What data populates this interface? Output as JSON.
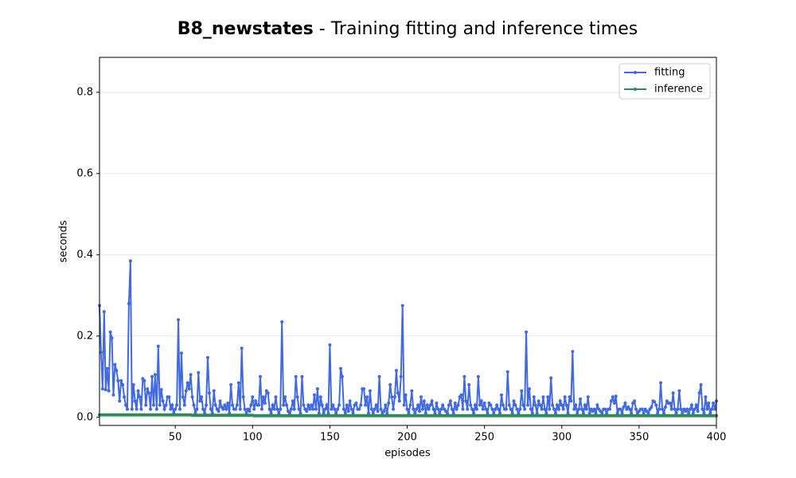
{
  "chart_data": {
    "type": "line",
    "title": {
      "name": "B8_newstates",
      "text": "- Training fitting and inference times"
    },
    "x_label": "episodes",
    "y_label": "seconds",
    "x": [
      1,
      2,
      3,
      4,
      5,
      6,
      7,
      8,
      9,
      10,
      11,
      12,
      13,
      14,
      15,
      16,
      17,
      18,
      19,
      20,
      21,
      22,
      23,
      24,
      25,
      26,
      27,
      28,
      29,
      30,
      31,
      32,
      33,
      34,
      35,
      36,
      37,
      38,
      39,
      40,
      41,
      42,
      43,
      44,
      45,
      46,
      47,
      48,
      49,
      50,
      51,
      52,
      53,
      54,
      55,
      56,
      57,
      58,
      59,
      60,
      61,
      62,
      63,
      64,
      65,
      66,
      67,
      68,
      69,
      70,
      71,
      72,
      73,
      74,
      75,
      76,
      77,
      78,
      79,
      80,
      81,
      82,
      83,
      84,
      85,
      86,
      87,
      88,
      89,
      90,
      91,
      92,
      93,
      94,
      95,
      96,
      97,
      98,
      99,
      100,
      101,
      102,
      103,
      104,
      105,
      106,
      107,
      108,
      109,
      110,
      111,
      112,
      113,
      114,
      115,
      116,
      117,
      118,
      119,
      120,
      121,
      122,
      123,
      124,
      125,
      126,
      127,
      128,
      129,
      130,
      131,
      132,
      133,
      134,
      135,
      136,
      137,
      138,
      139,
      140,
      141,
      142,
      143,
      144,
      145,
      146,
      147,
      148,
      149,
      150,
      151,
      152,
      153,
      154,
      155,
      156,
      157,
      158,
      159,
      160,
      161,
      162,
      163,
      164,
      165,
      166,
      167,
      168,
      169,
      170,
      171,
      172,
      173,
      174,
      175,
      176,
      177,
      178,
      179,
      180,
      181,
      182,
      183,
      184,
      185,
      186,
      187,
      188,
      189,
      190,
      191,
      192,
      193,
      194,
      195,
      196,
      197,
      198,
      199,
      200,
      201,
      202,
      203,
      204,
      205,
      206,
      207,
      208,
      209,
      210,
      211,
      212,
      213,
      214,
      215,
      216,
      217,
      218,
      219,
      220,
      221,
      222,
      223,
      224,
      225,
      226,
      227,
      228,
      229,
      230,
      231,
      232,
      233,
      234,
      235,
      236,
      237,
      238,
      239,
      240,
      241,
      242,
      243,
      244,
      245,
      246,
      247,
      248,
      249,
      250,
      251,
      252,
      253,
      254,
      255,
      256,
      257,
      258,
      259,
      260,
      261,
      262,
      263,
      264,
      265,
      266,
      267,
      268,
      269,
      270,
      271,
      272,
      273,
      274,
      275,
      276,
      277,
      278,
      279,
      280,
      281,
      282,
      283,
      284,
      285,
      286,
      287,
      288,
      289,
      290,
      291,
      292,
      293,
      294,
      295,
      296,
      297,
      298,
      299,
      300,
      301,
      302,
      303,
      304,
      305,
      306,
      307,
      308,
      309,
      310,
      311,
      312,
      313,
      314,
      315,
      316,
      317,
      318,
      319,
      320,
      321,
      322,
      323,
      324,
      325,
      326,
      327,
      328,
      329,
      330,
      331,
      332,
      333,
      334,
      335,
      336,
      337,
      338,
      339,
      340,
      341,
      342,
      343,
      344,
      345,
      346,
      347,
      348,
      349,
      350,
      351,
      352,
      353,
      354,
      355,
      356,
      357,
      358,
      359,
      360,
      361,
      362,
      363,
      364,
      365,
      366,
      367,
      368,
      369,
      370,
      371,
      372,
      373,
      374,
      375,
      376,
      377,
      378,
      379,
      380,
      381,
      382,
      383,
      384,
      385,
      386,
      387,
      388,
      389,
      390,
      391,
      392,
      393,
      394,
      395,
      396,
      397,
      398,
      399,
      400
    ],
    "series": [
      {
        "name": "fitting",
        "color": "#4169e1",
        "values": [
          0.275,
          0.16,
          0.07,
          0.26,
          0.068,
          0.12,
          0.065,
          0.21,
          0.195,
          0.055,
          0.13,
          0.115,
          0.09,
          0.04,
          0.09,
          0.08,
          0.05,
          0.03,
          0.02,
          0.28,
          0.385,
          0.02,
          0.08,
          0.04,
          0.02,
          0.065,
          0.05,
          0.02,
          0.095,
          0.09,
          0.03,
          0.07,
          0.06,
          0.02,
          0.1,
          0.03,
          0.105,
          0.02,
          0.175,
          0.03,
          0.068,
          0.04,
          0.02,
          0.03,
          0.05,
          0.05,
          0.02,
          0.03,
          0.01,
          0.02,
          0.03,
          0.24,
          0.02,
          0.158,
          0.05,
          0.03,
          0.065,
          0.085,
          0.07,
          0.105,
          0.05,
          0.03,
          0.01,
          0.02,
          0.11,
          0.04,
          0.05,
          0.02,
          0.01,
          0.03,
          0.147,
          0.06,
          0.02,
          0.01,
          0.065,
          0.03,
          0.02,
          0.015,
          0.04,
          0.025,
          0.02,
          0.03,
          0.02,
          0.035,
          0.01,
          0.08,
          0.03,
          0.02,
          0.02,
          0.03,
          0.085,
          0.02,
          0.17,
          0.05,
          0.02,
          0.01,
          0.02,
          0.015,
          0.03,
          0.05,
          0.02,
          0.04,
          0.03,
          0.03,
          0.1,
          0.02,
          0.05,
          0.035,
          0.065,
          0.06,
          0.02,
          0.01,
          0.03,
          0.02,
          0.05,
          0.02,
          0.01,
          0.02,
          0.235,
          0.03,
          0.05,
          0.03,
          0.015,
          0.01,
          0.02,
          0.04,
          0.02,
          0.1,
          0.05,
          0.02,
          0.01,
          0.1,
          0.03,
          0.02,
          0.015,
          0.03,
          0.02,
          0.03,
          0.02,
          0.055,
          0.02,
          0.07,
          0.01,
          0.05,
          0.03,
          0.01,
          0.02,
          0.03,
          0.01,
          0.178,
          0.02,
          0.03,
          0.02,
          0.01,
          0.02,
          0.03,
          0.12,
          0.1,
          0.02,
          0.01,
          0.03,
          0.015,
          0.04,
          0.02,
          0.01,
          0.03,
          0.035,
          0.02,
          0.02,
          0.03,
          0.07,
          0.07,
          0.03,
          0.05,
          0.01,
          0.065,
          0.02,
          0.01,
          0.02,
          0.03,
          0.015,
          0.1,
          0.02,
          0.01,
          0.015,
          0.03,
          0.01,
          0.035,
          0.08,
          0.05,
          0.02,
          0.05,
          0.115,
          0.06,
          0.04,
          0.1,
          0.275,
          0.03,
          0.055,
          0.02,
          0.01,
          0.03,
          0.065,
          0.02,
          0.01,
          0.02,
          0.03,
          0.015,
          0.05,
          0.02,
          0.04,
          0.01,
          0.03,
          0.02,
          0.03,
          0.04,
          0.02,
          0.01,
          0.035,
          0.02,
          0.01,
          0.02,
          0.03,
          0.02,
          0.015,
          0.01,
          0.03,
          0.04,
          0.02,
          0.01,
          0.035,
          0.02,
          0.03,
          0.05,
          0.055,
          0.02,
          0.1,
          0.04,
          0.02,
          0.08,
          0.03,
          0.02,
          0.01,
          0.03,
          0.02,
          0.1,
          0.03,
          0.04,
          0.02,
          0.035,
          0.02,
          0.01,
          0.035,
          0.03,
          0.02,
          0.01,
          0.02,
          0.03,
          0.02,
          0.01,
          0.055,
          0.03,
          0.02,
          0.02,
          0.112,
          0.03,
          0.02,
          0.01,
          0.04,
          0.03,
          0.02,
          0.01,
          0.02,
          0.065,
          0.03,
          0.02,
          0.21,
          0.03,
          0.07,
          0.02,
          0.01,
          0.05,
          0.03,
          0.01,
          0.04,
          0.03,
          0.02,
          0.05,
          0.02,
          0.01,
          0.05,
          0.02,
          0.097,
          0.03,
          0.02,
          0.01,
          0.03,
          0.02,
          0.04,
          0.03,
          0.02,
          0.05,
          0.03,
          0.01,
          0.05,
          0.04,
          0.162,
          0.02,
          0.03,
          0.01,
          0.02,
          0.045,
          0.02,
          0.01,
          0.03,
          0.02,
          0.05,
          0.01,
          0.02,
          0.015,
          0.02,
          0.01,
          0.03,
          0.02,
          0.015,
          0.01,
          0.02,
          0.02,
          0.01,
          0.02,
          0.02,
          0.04,
          0.05,
          0.035,
          0.052,
          0.01,
          0.02,
          0.02,
          0.01,
          0.025,
          0.035,
          0.02,
          0.025,
          0.02,
          0.01,
          0.035,
          0.04,
          0.02,
          0.01,
          0.015,
          0.02,
          0.02,
          0.01,
          0.02,
          0.015,
          0.01,
          0.02,
          0.025,
          0.04,
          0.038,
          0.03,
          0.01,
          0.02,
          0.085,
          0.02,
          0.01,
          0.025,
          0.04,
          0.035,
          0.035,
          0.02,
          0.06,
          0.02,
          0.01,
          0.02,
          0.065,
          0.02,
          0.01,
          0.02,
          0.015,
          0.02,
          0.01,
          0.02,
          0.03,
          0.01,
          0.02,
          0.03,
          0.015,
          0.06,
          0.08,
          0.02,
          0.01,
          0.05,
          0.02,
          0.035,
          0.01,
          0.02,
          0.035,
          0.02,
          0.04
        ]
      },
      {
        "name": "inference",
        "color": "#2e8b57",
        "values": [
          0.006,
          0.006,
          0.006,
          0.006,
          0.006,
          0.006,
          0.006,
          0.006,
          0.006,
          0.006,
          0.006,
          0.006,
          0.006,
          0.006,
          0.006,
          0.006,
          0.006,
          0.006,
          0.006,
          0.006,
          0.006,
          0.006,
          0.006,
          0.006,
          0.006,
          0.006,
          0.006,
          0.006,
          0.006,
          0.006,
          0.006,
          0.006,
          0.006,
          0.006,
          0.006,
          0.006,
          0.006,
          0.006,
          0.006,
          0.006,
          0.006,
          0.006,
          0.006,
          0.006,
          0.006,
          0.006,
          0.006,
          0.006,
          0.006,
          0.006,
          0.006,
          0.006,
          0.006,
          0.006,
          0.006,
          0.006,
          0.006,
          0.006,
          0.006,
          0.006,
          0.005,
          0.005,
          0.005,
          0.005,
          0.005,
          0.005,
          0.005,
          0.005,
          0.005,
          0.005,
          0.005,
          0.005,
          0.005,
          0.005,
          0.005,
          0.005,
          0.005,
          0.005,
          0.005,
          0.005,
          0.005,
          0.005,
          0.005,
          0.005,
          0.005,
          0.005,
          0.005,
          0.005,
          0.005,
          0.005,
          0.005,
          0.005,
          0.005,
          0.005,
          0.005,
          0.005,
          0.005,
          0.005,
          0.005,
          0.005,
          0.004,
          0.004,
          0.004,
          0.004,
          0.004,
          0.004,
          0.004,
          0.004,
          0.004,
          0.004,
          0.004,
          0.004,
          0.004,
          0.004,
          0.004,
          0.004,
          0.004,
          0.004,
          0.004,
          0.004,
          0.004,
          0.004,
          0.004,
          0.004,
          0.004,
          0.004,
          0.004,
          0.004,
          0.004,
          0.004,
          0.004,
          0.004,
          0.004,
          0.004,
          0.004,
          0.004,
          0.004,
          0.004,
          0.004,
          0.004,
          0.004,
          0.004,
          0.004,
          0.004,
          0.004,
          0.004,
          0.004,
          0.004,
          0.004,
          0.004,
          0.004,
          0.004,
          0.004,
          0.004,
          0.004,
          0.004,
          0.004,
          0.004,
          0.004,
          0.004,
          0.004,
          0.004,
          0.004,
          0.004,
          0.004,
          0.004,
          0.004,
          0.004,
          0.004,
          0.004,
          0.004,
          0.004,
          0.004,
          0.004,
          0.004,
          0.004,
          0.004,
          0.004,
          0.004,
          0.004,
          0.004,
          0.004,
          0.004,
          0.004,
          0.004,
          0.004,
          0.004,
          0.004,
          0.004,
          0.004,
          0.004,
          0.004,
          0.004,
          0.004,
          0.004,
          0.004,
          0.004,
          0.004,
          0.004,
          0.004,
          0.004,
          0.004,
          0.004,
          0.004,
          0.004,
          0.004,
          0.004,
          0.004,
          0.004,
          0.004,
          0.004,
          0.004,
          0.004,
          0.004,
          0.004,
          0.004,
          0.004,
          0.004,
          0.004,
          0.004,
          0.004,
          0.004,
          0.004,
          0.004,
          0.004,
          0.004,
          0.004,
          0.004,
          0.004,
          0.004,
          0.004,
          0.004,
          0.004,
          0.004,
          0.004,
          0.004,
          0.004,
          0.004,
          0.004,
          0.004,
          0.004,
          0.004,
          0.004,
          0.004,
          0.004,
          0.004,
          0.004,
          0.004,
          0.004,
          0.004,
          0.004,
          0.004,
          0.004,
          0.004,
          0.004,
          0.004,
          0.004,
          0.004,
          0.004,
          0.004,
          0.004,
          0.004,
          0.004,
          0.004,
          0.004,
          0.004,
          0.004,
          0.004,
          0.004,
          0.004,
          0.004,
          0.004,
          0.004,
          0.004,
          0.004,
          0.004,
          0.004,
          0.004,
          0.004,
          0.004,
          0.004,
          0.004,
          0.004,
          0.004,
          0.004,
          0.004,
          0.004,
          0.004,
          0.004,
          0.004,
          0.004,
          0.004,
          0.004,
          0.004,
          0.004,
          0.004,
          0.004,
          0.004,
          0.004,
          0.004,
          0.004,
          0.004,
          0.004,
          0.004,
          0.004,
          0.004,
          0.004,
          0.004,
          0.004,
          0.004,
          0.004,
          0.004,
          0.004,
          0.004,
          0.004,
          0.004,
          0.004,
          0.004,
          0.004,
          0.004,
          0.004,
          0.004,
          0.004,
          0.004,
          0.004,
          0.004,
          0.004,
          0.004,
          0.004,
          0.004,
          0.004,
          0.004,
          0.004,
          0.004,
          0.004,
          0.004,
          0.004,
          0.004,
          0.004,
          0.004,
          0.004,
          0.004,
          0.004,
          0.004,
          0.004,
          0.004,
          0.004,
          0.004,
          0.004,
          0.004,
          0.004,
          0.004,
          0.004,
          0.004,
          0.004,
          0.004,
          0.004,
          0.004,
          0.004,
          0.004,
          0.004,
          0.004,
          0.004,
          0.004,
          0.004,
          0.004,
          0.004,
          0.004,
          0.004,
          0.004,
          0.004,
          0.004,
          0.004,
          0.004,
          0.004,
          0.004,
          0.004,
          0.004,
          0.004,
          0.004,
          0.004,
          0.004,
          0.004,
          0.004,
          0.004,
          0.004,
          0.004,
          0.004,
          0.004,
          0.004,
          0.004,
          0.004,
          0.004,
          0.004,
          0.004,
          0.004,
          0.004,
          0.004,
          0.004,
          0.004
        ]
      }
    ],
    "xlim": [
      1,
      400
    ],
    "xticks": [
      50,
      100,
      150,
      200,
      250,
      300,
      350,
      400
    ],
    "ylim": [
      -0.02,
      0.886
    ],
    "yticks": [
      {
        "value": 0,
        "label": "0.0"
      },
      0.2,
      0.4,
      0.6,
      0.8
    ],
    "grid": true,
    "legend": "upper right"
  }
}
